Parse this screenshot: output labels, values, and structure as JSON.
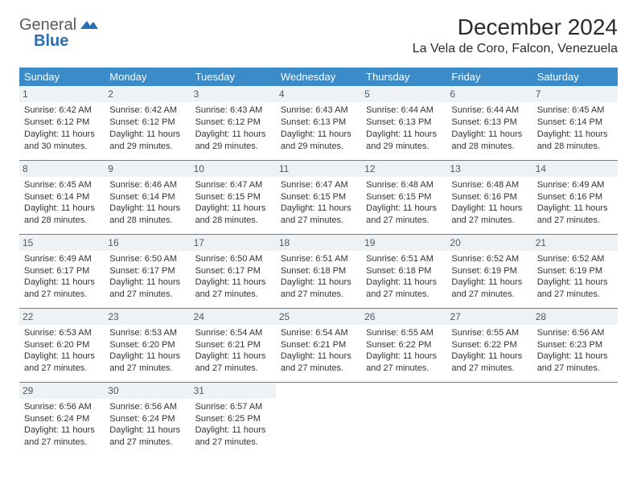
{
  "brand": {
    "line1": "General",
    "line2": "Blue"
  },
  "title": "December 2024",
  "location": "La Vela de Coro, Falcon, Venezuela",
  "colors": {
    "header_bg": "#3b8bc9",
    "header_text": "#ffffff",
    "daybar_bg": "#eef2f5",
    "daybar_text": "#4a5a68",
    "row_border": "#3b8bc9",
    "body_text": "#333333",
    "brand_gray": "#5a5a5a",
    "brand_blue": "#2a6fb5"
  },
  "dayHeaders": [
    "Sunday",
    "Monday",
    "Tuesday",
    "Wednesday",
    "Thursday",
    "Friday",
    "Saturday"
  ],
  "weeks": [
    [
      {
        "n": "1",
        "sr": "6:42 AM",
        "ss": "6:12 PM",
        "dl": "11 hours and 30 minutes."
      },
      {
        "n": "2",
        "sr": "6:42 AM",
        "ss": "6:12 PM",
        "dl": "11 hours and 29 minutes."
      },
      {
        "n": "3",
        "sr": "6:43 AM",
        "ss": "6:12 PM",
        "dl": "11 hours and 29 minutes."
      },
      {
        "n": "4",
        "sr": "6:43 AM",
        "ss": "6:13 PM",
        "dl": "11 hours and 29 minutes."
      },
      {
        "n": "5",
        "sr": "6:44 AM",
        "ss": "6:13 PM",
        "dl": "11 hours and 29 minutes."
      },
      {
        "n": "6",
        "sr": "6:44 AM",
        "ss": "6:13 PM",
        "dl": "11 hours and 28 minutes."
      },
      {
        "n": "7",
        "sr": "6:45 AM",
        "ss": "6:14 PM",
        "dl": "11 hours and 28 minutes."
      }
    ],
    [
      {
        "n": "8",
        "sr": "6:45 AM",
        "ss": "6:14 PM",
        "dl": "11 hours and 28 minutes."
      },
      {
        "n": "9",
        "sr": "6:46 AM",
        "ss": "6:14 PM",
        "dl": "11 hours and 28 minutes."
      },
      {
        "n": "10",
        "sr": "6:47 AM",
        "ss": "6:15 PM",
        "dl": "11 hours and 28 minutes."
      },
      {
        "n": "11",
        "sr": "6:47 AM",
        "ss": "6:15 PM",
        "dl": "11 hours and 27 minutes."
      },
      {
        "n": "12",
        "sr": "6:48 AM",
        "ss": "6:15 PM",
        "dl": "11 hours and 27 minutes."
      },
      {
        "n": "13",
        "sr": "6:48 AM",
        "ss": "6:16 PM",
        "dl": "11 hours and 27 minutes."
      },
      {
        "n": "14",
        "sr": "6:49 AM",
        "ss": "6:16 PM",
        "dl": "11 hours and 27 minutes."
      }
    ],
    [
      {
        "n": "15",
        "sr": "6:49 AM",
        "ss": "6:17 PM",
        "dl": "11 hours and 27 minutes."
      },
      {
        "n": "16",
        "sr": "6:50 AM",
        "ss": "6:17 PM",
        "dl": "11 hours and 27 minutes."
      },
      {
        "n": "17",
        "sr": "6:50 AM",
        "ss": "6:17 PM",
        "dl": "11 hours and 27 minutes."
      },
      {
        "n": "18",
        "sr": "6:51 AM",
        "ss": "6:18 PM",
        "dl": "11 hours and 27 minutes."
      },
      {
        "n": "19",
        "sr": "6:51 AM",
        "ss": "6:18 PM",
        "dl": "11 hours and 27 minutes."
      },
      {
        "n": "20",
        "sr": "6:52 AM",
        "ss": "6:19 PM",
        "dl": "11 hours and 27 minutes."
      },
      {
        "n": "21",
        "sr": "6:52 AM",
        "ss": "6:19 PM",
        "dl": "11 hours and 27 minutes."
      }
    ],
    [
      {
        "n": "22",
        "sr": "6:53 AM",
        "ss": "6:20 PM",
        "dl": "11 hours and 27 minutes."
      },
      {
        "n": "23",
        "sr": "6:53 AM",
        "ss": "6:20 PM",
        "dl": "11 hours and 27 minutes."
      },
      {
        "n": "24",
        "sr": "6:54 AM",
        "ss": "6:21 PM",
        "dl": "11 hours and 27 minutes."
      },
      {
        "n": "25",
        "sr": "6:54 AM",
        "ss": "6:21 PM",
        "dl": "11 hours and 27 minutes."
      },
      {
        "n": "26",
        "sr": "6:55 AM",
        "ss": "6:22 PM",
        "dl": "11 hours and 27 minutes."
      },
      {
        "n": "27",
        "sr": "6:55 AM",
        "ss": "6:22 PM",
        "dl": "11 hours and 27 minutes."
      },
      {
        "n": "28",
        "sr": "6:56 AM",
        "ss": "6:23 PM",
        "dl": "11 hours and 27 minutes."
      }
    ],
    [
      {
        "n": "29",
        "sr": "6:56 AM",
        "ss": "6:24 PM",
        "dl": "11 hours and 27 minutes."
      },
      {
        "n": "30",
        "sr": "6:56 AM",
        "ss": "6:24 PM",
        "dl": "11 hours and 27 minutes."
      },
      {
        "n": "31",
        "sr": "6:57 AM",
        "ss": "6:25 PM",
        "dl": "11 hours and 27 minutes."
      },
      null,
      null,
      null,
      null
    ]
  ],
  "labels": {
    "sunrise": "Sunrise:",
    "sunset": "Sunset:",
    "daylight": "Daylight:"
  }
}
